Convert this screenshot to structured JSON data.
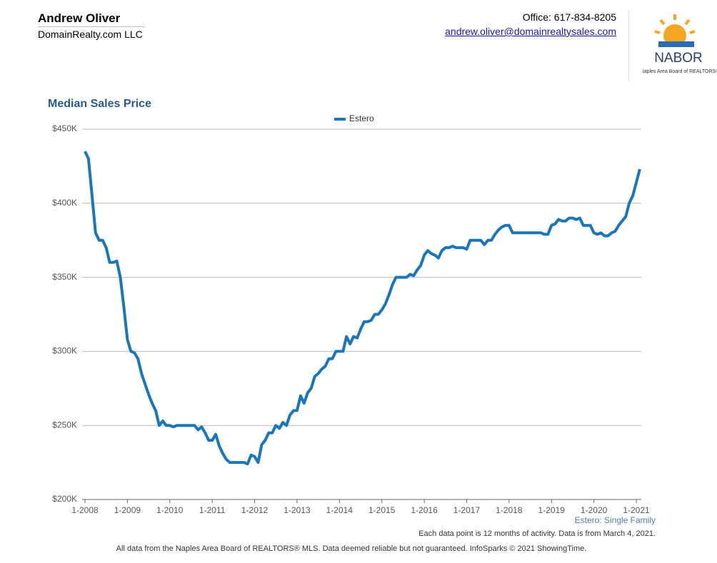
{
  "header": {
    "name": "Andrew Oliver",
    "company": "DomainRealty.com LLC",
    "office": "Office: 617-834-8205",
    "email": "andrew.oliver@domainrealtysales.com",
    "logo_text": "NABOR",
    "logo_subtext": "Naples Area Board of REALTORS®"
  },
  "chart_data": {
    "type": "line",
    "title": "Median Sales Price",
    "categories": [
      "1-2008",
      null,
      null,
      null,
      null,
      null,
      null,
      null,
      null,
      null,
      null,
      null,
      "1-2009",
      null,
      null,
      null,
      null,
      null,
      null,
      null,
      null,
      null,
      null,
      null,
      "1-2010",
      null,
      null,
      null,
      null,
      null,
      null,
      null,
      null,
      null,
      null,
      null,
      "1-2011",
      null,
      null,
      null,
      null,
      null,
      null,
      null,
      null,
      null,
      null,
      null,
      "1-2012",
      null,
      null,
      null,
      null,
      null,
      null,
      null,
      null,
      null,
      null,
      null,
      "1-2013",
      null,
      null,
      null,
      null,
      null,
      null,
      null,
      null,
      null,
      null,
      null,
      "1-2014",
      null,
      null,
      null,
      null,
      null,
      null,
      null,
      null,
      null,
      null,
      null,
      "1-2015",
      null,
      null,
      null,
      null,
      null,
      null,
      null,
      null,
      null,
      null,
      null,
      "1-2016",
      null,
      null,
      null,
      null,
      null,
      null,
      null,
      null,
      null,
      null,
      null,
      "1-2017",
      null,
      null,
      null,
      null,
      null,
      null,
      null,
      null,
      null,
      null,
      null,
      "1-2018",
      null,
      null,
      null,
      null,
      null,
      null,
      null,
      null,
      null,
      null,
      null,
      "1-2019",
      null,
      null,
      null,
      null,
      null,
      null,
      null,
      null,
      null,
      null,
      null,
      "1-2020",
      null,
      null,
      null,
      null,
      null,
      null,
      null,
      null,
      null,
      null,
      null,
      "1-2021",
      null
    ],
    "series": [
      {
        "name": "Estero",
        "color": "#1a75bb",
        "values": [
          435000,
          430000,
          405000,
          380000,
          375000,
          375000,
          370000,
          360000,
          360000,
          361000,
          350000,
          330000,
          308000,
          300000,
          299000,
          295000,
          285000,
          278000,
          271000,
          265000,
          260000,
          250000,
          253000,
          250000,
          250000,
          249000,
          250000,
          250000,
          250000,
          250000,
          250000,
          250000,
          247000,
          249000,
          245000,
          240000,
          240000,
          244000,
          236000,
          231000,
          227000,
          225000,
          225000,
          225000,
          225000,
          225000,
          224000,
          230000,
          229000,
          225000,
          237000,
          240000,
          245000,
          245000,
          250000,
          248000,
          252000,
          250000,
          257000,
          260000,
          260000,
          270000,
          265000,
          272000,
          275000,
          283000,
          285000,
          288000,
          290000,
          295000,
          295000,
          300000,
          300000,
          300000,
          310000,
          305000,
          310000,
          309000,
          315000,
          320000,
          320000,
          321000,
          325000,
          325000,
          328000,
          332000,
          338000,
          345000,
          350000,
          350000,
          350000,
          350000,
          352000,
          351000,
          355000,
          358000,
          365000,
          368000,
          366000,
          365000,
          363000,
          368000,
          370000,
          370000,
          371000,
          370000,
          370000,
          370000,
          369000,
          375000,
          375000,
          375000,
          375000,
          372000,
          375000,
          375000,
          379000,
          382000,
          384000,
          385000,
          385000,
          380000,
          380000,
          380000,
          380000,
          380000,
          380000,
          380000,
          380000,
          380000,
          379000,
          379000,
          385000,
          386000,
          389000,
          388000,
          388000,
          390000,
          390000,
          389000,
          390000,
          385000,
          385000,
          385000,
          380000,
          379000,
          380000,
          378000,
          378000,
          380000,
          381000,
          385000,
          388000,
          391000,
          400000,
          405000,
          414000,
          423000
        ]
      }
    ],
    "ylim": [
      200000,
      450000
    ],
    "yticks": [
      {
        "value": 200000,
        "label": "$200K"
      },
      {
        "value": 250000,
        "label": "$250K"
      },
      {
        "value": 300000,
        "label": "$300K"
      },
      {
        "value": 350000,
        "label": "$350K"
      },
      {
        "value": 400000,
        "label": "$400K"
      },
      {
        "value": 450000,
        "label": "$450K"
      }
    ],
    "grid": true,
    "legend": "top",
    "annotations": [
      "Estero: Single Family",
      "Each data point is 12 months of activity. Data is from March 4, 2021."
    ],
    "footer": "All data from the Naples Area Board of REALTORS® MLS. Data deemed reliable but not guaranteed. InfoSparks © 2021 ShowingTime."
  }
}
